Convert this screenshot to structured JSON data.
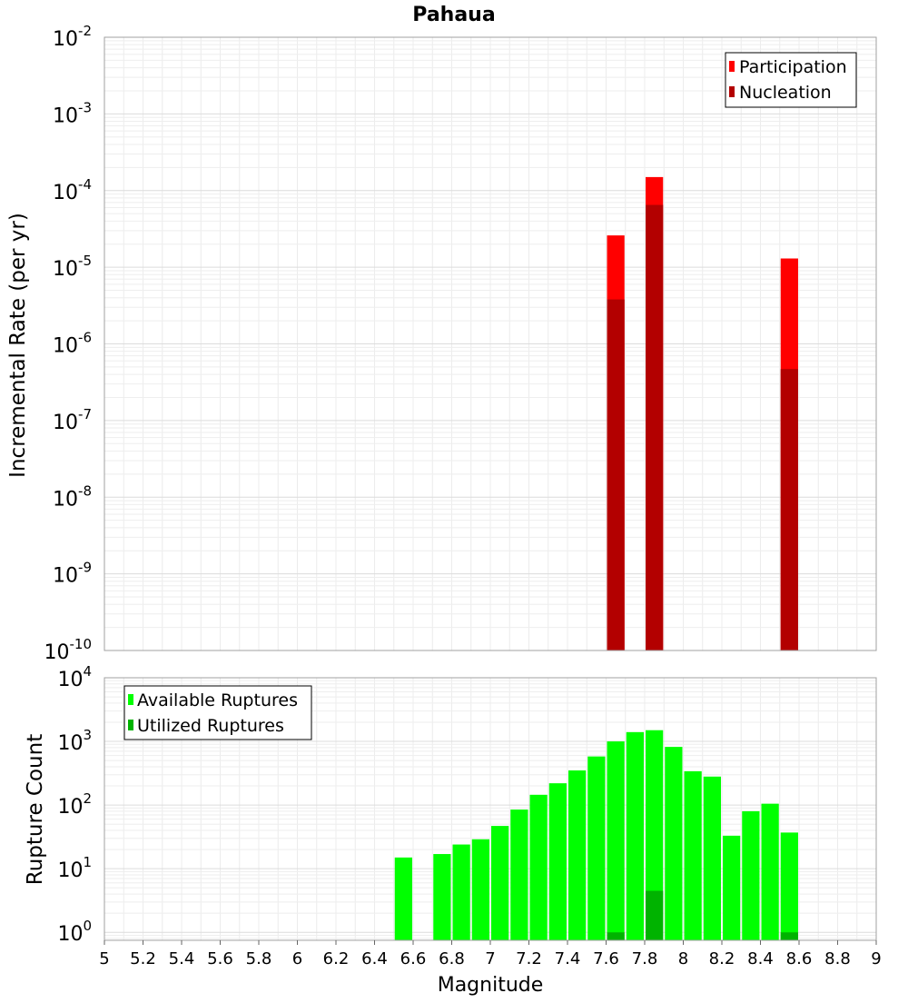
{
  "chart_data": [
    {
      "type": "bar",
      "title": "Pahaua",
      "ylabel": "Incremental Rate (per yr)",
      "y_scale": "log",
      "ylim": [
        1e-10,
        0.01
      ],
      "xlim": [
        5,
        9
      ],
      "bin_width": 0.1,
      "grid": true,
      "legend_position": "top-right",
      "y_tick_exponents": [
        "-2",
        "-3",
        "-4",
        "-5",
        "-6",
        "-7",
        "-8",
        "-9",
        "-10"
      ],
      "series": [
        {
          "name": "Participation",
          "color": "#ff0000",
          "x": [
            7.65,
            7.85,
            8.55
          ],
          "values": [
            2.6e-05,
            0.00015,
            1.3e-05
          ]
        },
        {
          "name": "Nucleation",
          "color": "#b30000",
          "x": [
            7.65,
            7.85,
            8.55
          ],
          "values": [
            3.8e-06,
            6.5e-05,
            4.7e-07
          ]
        }
      ]
    },
    {
      "type": "bar",
      "xlabel": "Magnitude",
      "ylabel": "Rupture Count",
      "y_scale": "log",
      "ylim": [
        0.75,
        10000
      ],
      "xlim": [
        5,
        9
      ],
      "bin_width": 0.1,
      "grid": true,
      "legend_position": "top-left",
      "y_tick_exponents": [
        "4",
        "3",
        "2",
        "1",
        "0"
      ],
      "x_tick_labels": [
        "5",
        "5.2",
        "5.4",
        "5.6",
        "5.8",
        "6",
        "6.2",
        "6.4",
        "6.6",
        "6.8",
        "7",
        "7.2",
        "7.4",
        "7.6",
        "7.8",
        "8",
        "8.2",
        "8.4",
        "8.6",
        "8.8",
        "9"
      ],
      "series": [
        {
          "name": "Available Ruptures",
          "color": "#00ff00",
          "x": [
            6.55,
            6.75,
            6.85,
            6.95,
            7.05,
            7.15,
            7.25,
            7.35,
            7.45,
            7.55,
            7.65,
            7.75,
            7.85,
            7.95,
            8.05,
            8.15,
            8.25,
            8.35,
            8.45,
            8.55
          ],
          "values": [
            15,
            17,
            24,
            29,
            47,
            85,
            145,
            220,
            350,
            580,
            1000,
            1400,
            1500,
            820,
            340,
            280,
            33,
            80,
            105,
            37
          ]
        },
        {
          "name": "Utilized Ruptures",
          "color": "#00b300",
          "x": [
            7.65,
            7.85,
            8.55
          ],
          "values": [
            1,
            4.5,
            1
          ]
        }
      ]
    }
  ]
}
